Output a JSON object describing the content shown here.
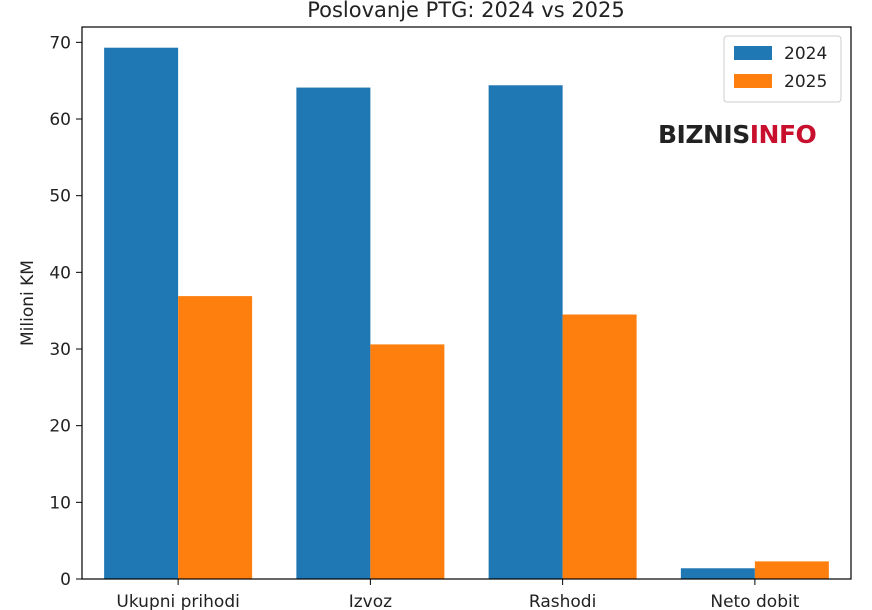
{
  "chart_data": {
    "type": "bar",
    "title": "Poslovanje PTG: 2024 vs 2025",
    "xlabel": "",
    "ylabel": "Milioni KM",
    "categories": [
      "Ukupni prihodi",
      "Izvoz",
      "Rashodi",
      "Neto dobit"
    ],
    "series": [
      {
        "name": "2024",
        "values": [
          69.3,
          64.1,
          64.4,
          1.4
        ],
        "color": "#1f77b4"
      },
      {
        "name": "2025",
        "values": [
          36.9,
          30.6,
          34.5,
          2.3
        ],
        "color": "#ff7f0e"
      }
    ],
    "ylim": [
      0,
      72
    ],
    "yticks": [
      0,
      10,
      20,
      30,
      40,
      50,
      60,
      70
    ],
    "legend_position": "top-right",
    "grid": false
  },
  "watermark": {
    "part1": "BIZNIS",
    "part2": "INFO",
    "color1": "#222222",
    "color2": "#c8102e"
  }
}
